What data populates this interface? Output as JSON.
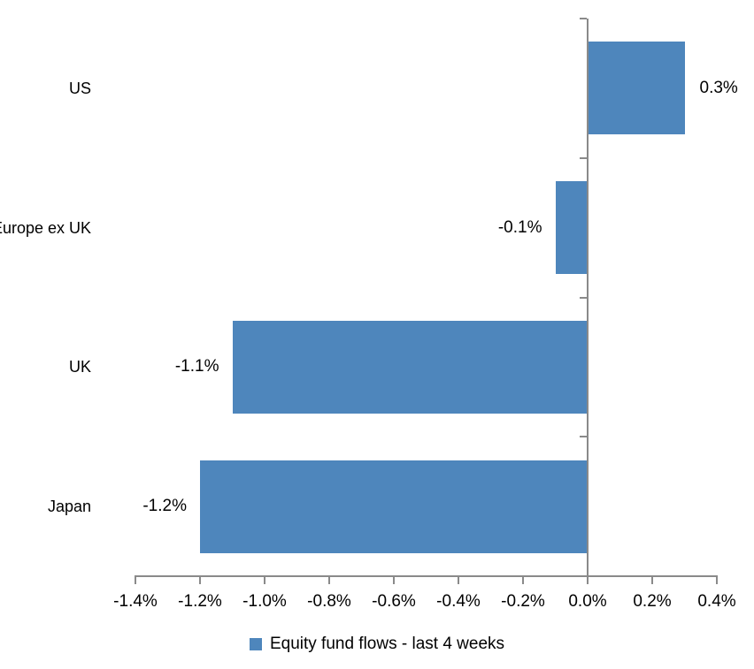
{
  "chart_data": {
    "type": "bar",
    "orientation": "horizontal",
    "title": "",
    "xlabel": "",
    "ylabel": "",
    "categories": [
      "US",
      "Europe ex UK",
      "UK",
      "Japan"
    ],
    "values": [
      0.3,
      -0.1,
      -1.1,
      -1.2
    ],
    "value_labels": [
      "0.3%",
      "-0.1%",
      "-1.1%",
      "-1.2%"
    ],
    "xlim": [
      -1.4,
      0.4
    ],
    "xticks": [
      {
        "value": -1.4,
        "label": "-1.4%"
      },
      {
        "value": -1.2,
        "label": "-1.2%"
      },
      {
        "value": -1.0,
        "label": "-1.0%"
      },
      {
        "value": -0.8,
        "label": "-0.8%"
      },
      {
        "value": -0.6,
        "label": "-0.6%"
      },
      {
        "value": -0.4,
        "label": "-0.4%"
      },
      {
        "value": -0.2,
        "label": "-0.2%"
      },
      {
        "value": 0.0,
        "label": "0.0%"
      },
      {
        "value": 0.2,
        "label": "0.2%"
      },
      {
        "value": 0.4,
        "label": "0.4%"
      }
    ],
    "legend": "Equity fund flows - last 4 weeks",
    "legend_position": "bottom",
    "grid": false,
    "bar_color": "#4E86BC",
    "axis_color": "#8A8A8A",
    "text_color": "#000000"
  }
}
